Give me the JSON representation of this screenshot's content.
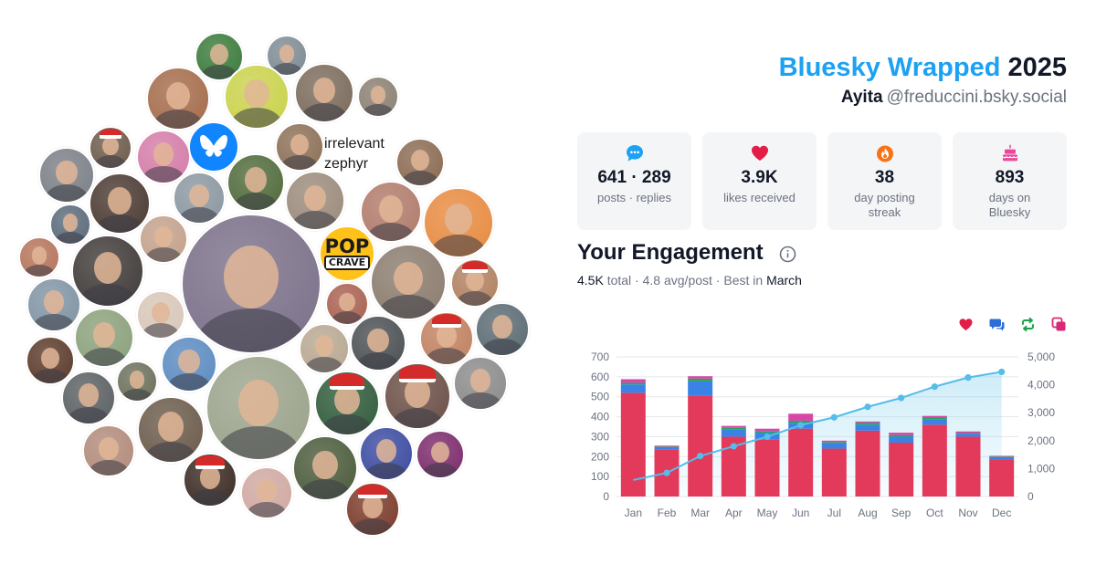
{
  "header": {
    "brand_blue": "Bluesky Wrapped",
    "brand_year": "2025",
    "display_name": "Ayita",
    "handle": "@freduccini.bsky.social"
  },
  "stats": [
    {
      "icon": "chat-bubble-icon",
      "value": "641 · 289",
      "label": "posts · replies",
      "color": "#1da1f2"
    },
    {
      "icon": "heart-icon",
      "value": "3.9K",
      "label": "likes received",
      "color": "#e11d48"
    },
    {
      "icon": "flame-icon",
      "value": "38",
      "label": "day posting streak",
      "color": "#f97316"
    },
    {
      "icon": "cake-icon",
      "value": "893",
      "label": "days on Bluesky",
      "color": "#ec4899"
    }
  ],
  "engagement": {
    "title": "Your Engagement",
    "total_value": "4.5K",
    "total_word": "total",
    "avg": "4.8 avg/post",
    "best_prefix": "Best in",
    "best_month": "March"
  },
  "collage": {
    "overlay_text_1": "irrelevant",
    "overlay_text_2": "zephyr",
    "logo_text_1": "POP",
    "logo_text_2": "CRAVE"
  },
  "legend": [
    {
      "icon": "heart-icon",
      "color": "#e11d48"
    },
    {
      "icon": "reply-icon",
      "color": "#2b6fd6"
    },
    {
      "icon": "repost-icon",
      "color": "#16a34a"
    },
    {
      "icon": "quote-icon",
      "color": "#db2777"
    }
  ],
  "chart_data": {
    "type": "bar",
    "stacked": true,
    "categories": [
      "Jan",
      "Feb",
      "Mar",
      "Apr",
      "May",
      "Jun",
      "Jul",
      "Aug",
      "Sep",
      "Oct",
      "Nov",
      "Dec"
    ],
    "series": [
      {
        "values": [
          520,
          235,
          505,
          300,
          285,
          340,
          240,
          330,
          270,
          360,
          300,
          185
        ],
        "color": "#e3395a"
      },
      {
        "values": [
          42,
          12,
          72,
          38,
          35,
          30,
          28,
          30,
          30,
          28,
          15,
          12
        ],
        "color": "#3b82e6"
      },
      {
        "values": [
          8,
          3,
          14,
          6,
          8,
          10,
          5,
          10,
          8,
          8,
          3,
          3
        ],
        "color": "#22a55c"
      },
      {
        "values": [
          18,
          5,
          12,
          10,
          12,
          35,
          7,
          6,
          12,
          8,
          8,
          4
        ],
        "color": "#d946a8"
      }
    ],
    "cumulative": {
      "values": [
        590,
        845,
        1450,
        1800,
        2140,
        2555,
        2835,
        3211,
        3530,
        3934,
        4260,
        4463
      ],
      "color": "#54bde8"
    },
    "ylim": [
      0,
      700
    ],
    "yticks": [
      0,
      100,
      200,
      300,
      400,
      500,
      600,
      700
    ],
    "y2lim": [
      0,
      5000
    ],
    "y2ticks": [
      "0",
      "1,000",
      "2,000",
      "3,000",
      "4,000",
      "5,000"
    ],
    "grid": true
  }
}
